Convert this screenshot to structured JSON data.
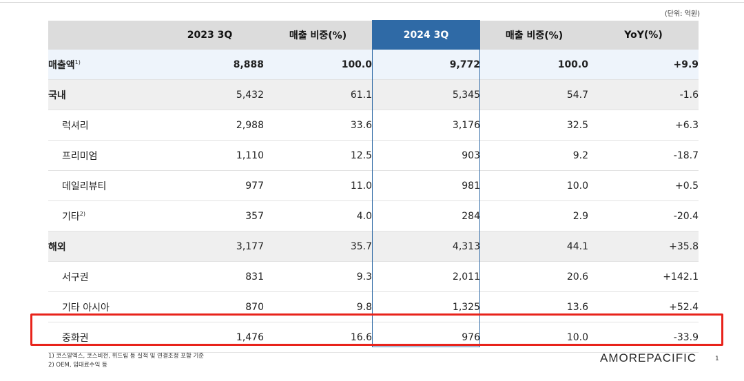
{
  "unit_note": "(단위: 억원)",
  "columns": [
    "",
    "2023 3Q",
    "매출 비중(%)",
    "2024 3Q",
    "매출 비중(%)",
    "YoY(%)"
  ],
  "rows": [
    {
      "label": "매출액",
      "sup": "1)",
      "v": [
        "8,888",
        "100.0",
        "9,772",
        "100.0",
        "+9.9"
      ],
      "type": "total"
    },
    {
      "label": "국내",
      "sup": "",
      "v": [
        "5,432",
        "61.1",
        "5,345",
        "54.7",
        "-1.6"
      ],
      "type": "group"
    },
    {
      "label": "럭셔리",
      "sup": "",
      "v": [
        "2,988",
        "33.6",
        "3,176",
        "32.5",
        "+6.3"
      ],
      "type": "sub"
    },
    {
      "label": "프리미엄",
      "sup": "",
      "v": [
        "1,110",
        "12.5",
        "903",
        "9.2",
        "-18.7"
      ],
      "type": "sub"
    },
    {
      "label": "데일리뷰티",
      "sup": "",
      "v": [
        "977",
        "11.0",
        "981",
        "10.0",
        "+0.5"
      ],
      "type": "sub"
    },
    {
      "label": "기타",
      "sup": "2)",
      "v": [
        "357",
        "4.0",
        "284",
        "2.9",
        "-20.4"
      ],
      "type": "sub"
    },
    {
      "label": "해외",
      "sup": "",
      "v": [
        "3,177",
        "35.7",
        "4,313",
        "44.1",
        "+35.8"
      ],
      "type": "group"
    },
    {
      "label": "서구권",
      "sup": "",
      "v": [
        "831",
        "9.3",
        "2,011",
        "20.6",
        "+142.1"
      ],
      "type": "sub"
    },
    {
      "label": "기타 아시아",
      "sup": "",
      "v": [
        "870",
        "9.8",
        "1,325",
        "13.6",
        "+52.4"
      ],
      "type": "sub"
    },
    {
      "label": "중화권",
      "sup": "",
      "v": [
        "1,476",
        "16.6",
        "976",
        "10.0",
        "-33.9"
      ],
      "type": "sub"
    }
  ],
  "footnotes": [
    "1) 코스알엑스, 코스비전, 위드림 등 실적 및 연결조정 포함 기준",
    "2) OEM, 임대료수익 등"
  ],
  "brand": "AMOREPACIFIC",
  "page_number": "1",
  "colors": {
    "header_bg": "#dcdcdc",
    "highlight_col": "#2f6aa6",
    "total_row_bg": "#eef4fb",
    "group_row_bg": "#efefef",
    "annotation_box": "#e8231b"
  }
}
